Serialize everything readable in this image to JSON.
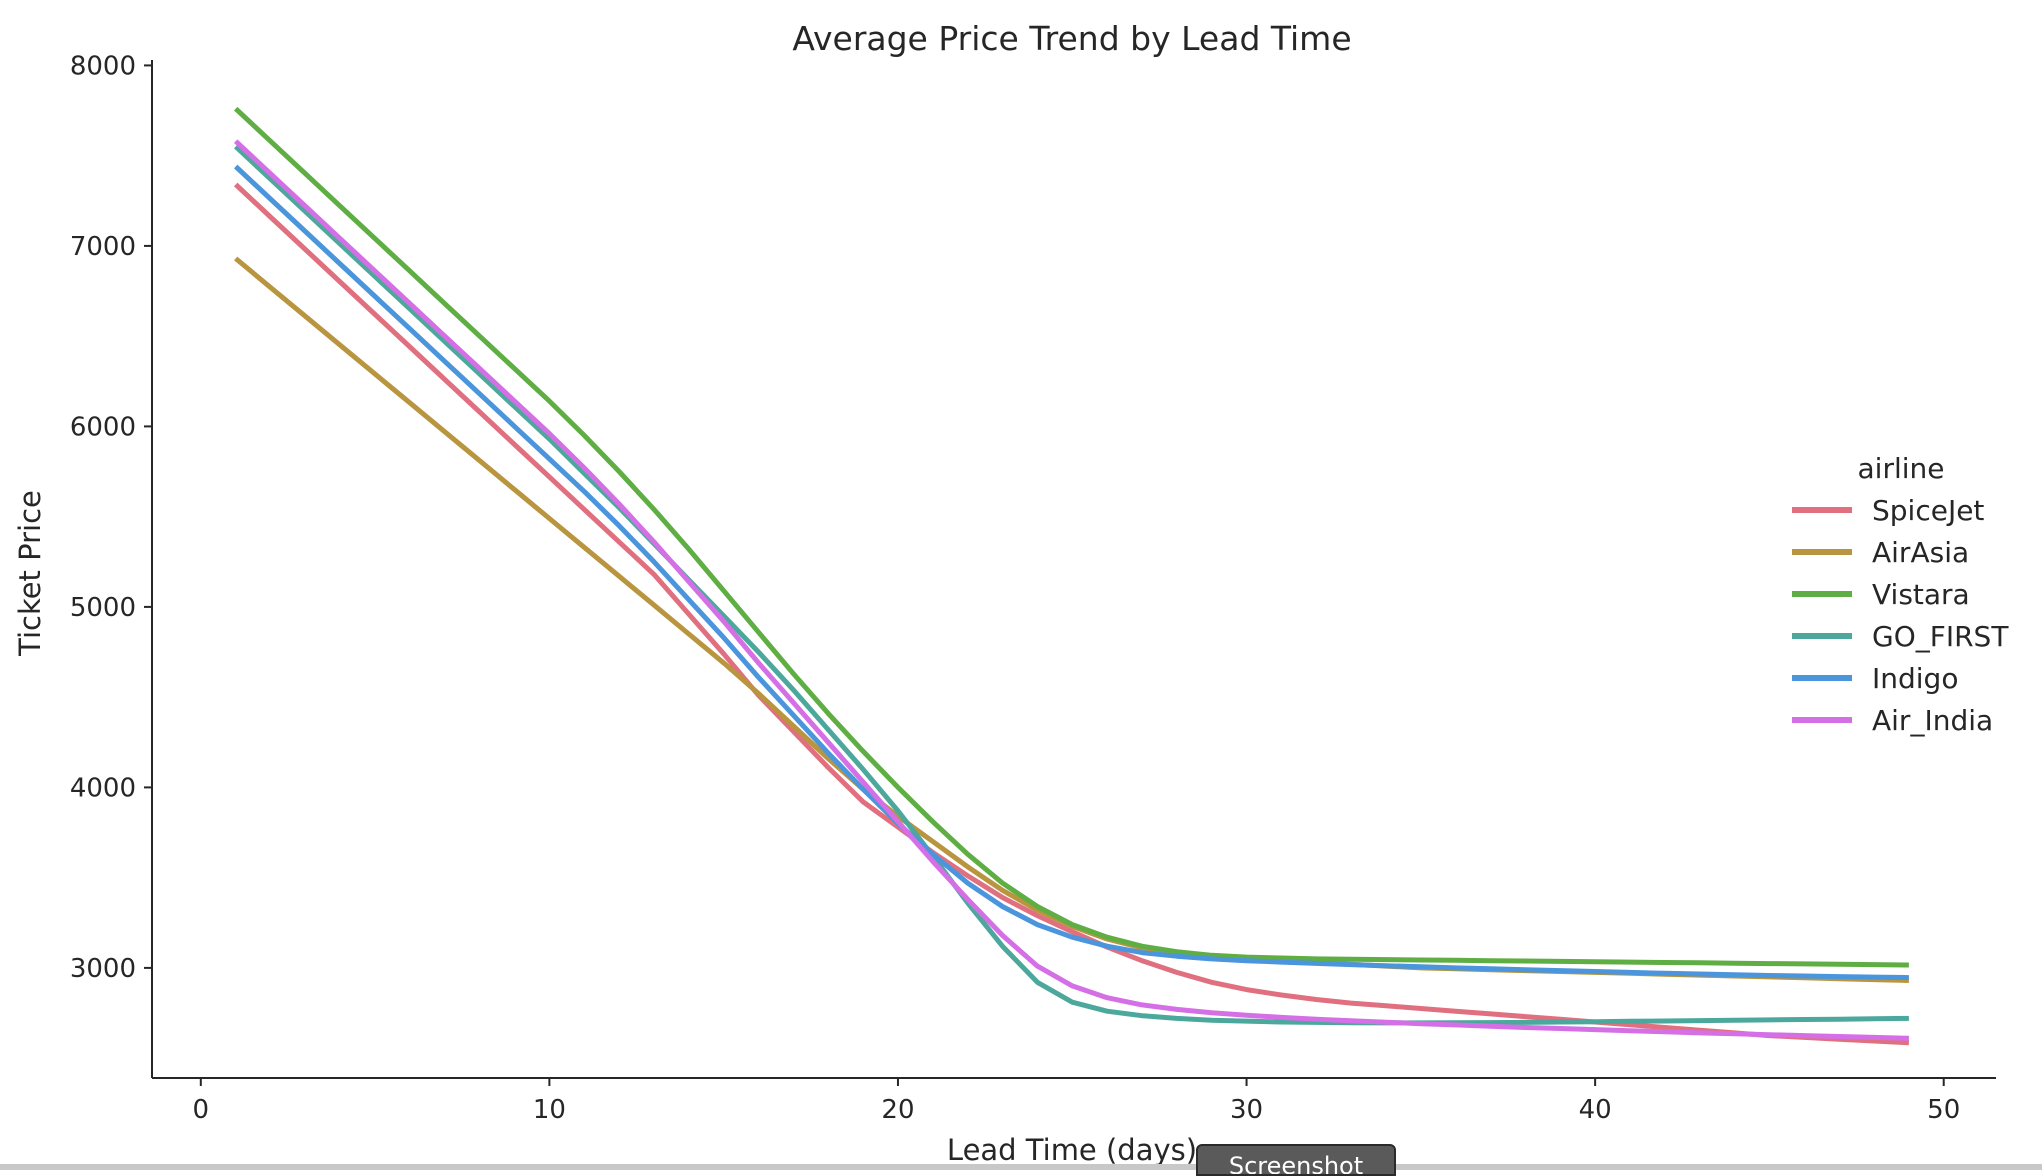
{
  "chart_data": {
    "type": "line",
    "title": "Average Price Trend by Lead Time",
    "xlabel": "Lead Time (days)",
    "ylabel": "Ticket Price",
    "xlim": [
      -1.4,
      51.5
    ],
    "ylim": [
      2390,
      8030
    ],
    "x_ticks": [
      0,
      10,
      20,
      30,
      40,
      50
    ],
    "y_ticks": [
      3000,
      4000,
      5000,
      6000,
      7000,
      8000
    ],
    "grid": false,
    "legend": {
      "title": "airline",
      "position": "right"
    },
    "x": [
      1,
      2,
      3,
      4,
      5,
      6,
      7,
      8,
      9,
      10,
      11,
      12,
      13,
      14,
      15,
      16,
      17,
      18,
      19,
      20,
      21,
      22,
      23,
      24,
      25,
      26,
      27,
      28,
      29,
      30,
      31,
      32,
      33,
      34,
      35,
      36,
      37,
      38,
      39,
      40,
      41,
      42,
      43,
      44,
      45,
      46,
      47,
      48,
      49
    ],
    "series": [
      {
        "name": "SpiceJet",
        "color": "#e07080",
        "values": [
          7340,
          7160,
          6980,
          6800,
          6620,
          6440,
          6260,
          6080,
          5900,
          5720,
          5540,
          5360,
          5180,
          4960,
          4740,
          4510,
          4310,
          4110,
          3920,
          3780,
          3640,
          3510,
          3390,
          3290,
          3200,
          3115,
          3040,
          2975,
          2920,
          2880,
          2850,
          2825,
          2805,
          2790,
          2775,
          2760,
          2745,
          2730,
          2715,
          2700,
          2685,
          2670,
          2655,
          2640,
          2625,
          2615,
          2605,
          2595,
          2585
        ]
      },
      {
        "name": "AirAsia",
        "color": "#b8953e",
        "values": [
          6930,
          6770,
          6610,
          6450,
          6290,
          6130,
          5970,
          5810,
          5650,
          5490,
          5330,
          5170,
          5010,
          4850,
          4690,
          4520,
          4340,
          4160,
          3990,
          3840,
          3700,
          3560,
          3430,
          3320,
          3230,
          3160,
          3110,
          3080,
          3060,
          3050,
          3040,
          3030,
          3020,
          3010,
          3000,
          2995,
          2990,
          2985,
          2980,
          2975,
          2970,
          2965,
          2960,
          2955,
          2950,
          2945,
          2940,
          2935,
          2930
        ]
      },
      {
        "name": "Vistara",
        "color": "#5fae44",
        "values": [
          7760,
          7580,
          7400,
          7220,
          7040,
          6860,
          6680,
          6500,
          6320,
          6140,
          5950,
          5750,
          5540,
          5320,
          5090,
          4860,
          4630,
          4410,
          4200,
          4000,
          3810,
          3630,
          3470,
          3340,
          3240,
          3170,
          3120,
          3090,
          3070,
          3060,
          3055,
          3050,
          3048,
          3046,
          3044,
          3042,
          3040,
          3038,
          3036,
          3034,
          3032,
          3030,
          3028,
          3026,
          3024,
          3022,
          3020,
          3018,
          3016
        ]
      },
      {
        "name": "GO_FIRST",
        "color": "#4ca89c",
        "values": [
          7550,
          7370,
          7190,
          7010,
          6830,
          6650,
          6470,
          6290,
          6110,
          5930,
          5740,
          5550,
          5350,
          5150,
          4950,
          4750,
          4540,
          4320,
          4100,
          3870,
          3620,
          3360,
          3120,
          2920,
          2810,
          2760,
          2735,
          2720,
          2710,
          2705,
          2700,
          2698,
          2696,
          2695,
          2695,
          2696,
          2697,
          2698,
          2700,
          2702,
          2704,
          2706,
          2708,
          2710,
          2712,
          2714,
          2716,
          2718,
          2720
        ]
      },
      {
        "name": "Indigo",
        "color": "#4b95dd",
        "values": [
          7440,
          7260,
          7080,
          6900,
          6720,
          6540,
          6360,
          6180,
          6000,
          5820,
          5640,
          5450,
          5250,
          5040,
          4830,
          4610,
          4400,
          4190,
          3990,
          3800,
          3630,
          3470,
          3340,
          3240,
          3170,
          3120,
          3085,
          3065,
          3050,
          3040,
          3032,
          3025,
          3018,
          3012,
          3006,
          3000,
          2995,
          2990,
          2985,
          2980,
          2975,
          2970,
          2966,
          2962,
          2958,
          2955,
          2952,
          2949,
          2946
        ]
      },
      {
        "name": "Air_India",
        "color": "#d56fe6",
        "values": [
          7580,
          7400,
          7220,
          7040,
          6860,
          6680,
          6500,
          6320,
          6140,
          5960,
          5770,
          5570,
          5360,
          5140,
          4920,
          4690,
          4470,
          4250,
          4030,
          3810,
          3590,
          3380,
          3180,
          3010,
          2900,
          2835,
          2795,
          2770,
          2752,
          2738,
          2726,
          2716,
          2707,
          2699,
          2691,
          2684,
          2677,
          2670,
          2664,
          2658,
          2652,
          2646,
          2640,
          2635,
          2630,
          2625,
          2620,
          2615,
          2610
        ]
      }
    ]
  },
  "ui": {
    "screenshot_label": "Screenshot"
  }
}
